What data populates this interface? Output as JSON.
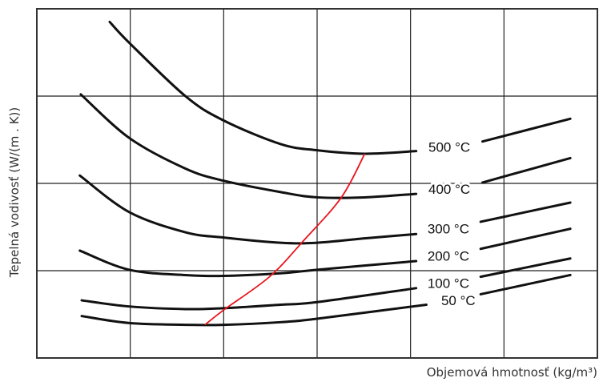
{
  "chart_data": {
    "type": "line",
    "title": "",
    "xlabel": "Objemová hmotnosť (kg/m³)",
    "ylabel": "Tepelná vodivosť (W/(m . K))",
    "xlim": [
      0,
      6
    ],
    "ylim": [
      0,
      4
    ],
    "grid": true,
    "tick_labels_shown": false,
    "series": [
      {
        "name": "500 °C",
        "color": "#111111",
        "segments": [
          [
            [
              0.78,
              3.85
            ],
            [
              0.99,
              3.61
            ],
            [
              1.59,
              3.0
            ],
            [
              2.0,
              2.72
            ],
            [
              2.61,
              2.45
            ],
            [
              3.0,
              2.38
            ],
            [
              3.51,
              2.34
            ],
            [
              4.06,
              2.37
            ]
          ],
          [
            [
              4.77,
              2.48
            ],
            [
              5.71,
              2.74
            ]
          ]
        ]
      },
      {
        "name": "400 °C",
        "color": "#111111",
        "segments": [
          [
            [
              0.47,
              3.02
            ],
            [
              0.99,
              2.52
            ],
            [
              1.59,
              2.17
            ],
            [
              2.0,
              2.03
            ],
            [
              2.61,
              1.9
            ],
            [
              3.0,
              1.84
            ],
            [
              3.51,
              1.84
            ],
            [
              4.06,
              1.88
            ]
          ],
          [
            [
              4.77,
              2.01
            ],
            [
              5.71,
              2.29
            ]
          ]
        ]
      },
      {
        "name": "300 °C",
        "color": "#111111",
        "segments": [
          [
            [
              0.46,
              2.09
            ],
            [
              0.99,
              1.67
            ],
            [
              1.59,
              1.44
            ],
            [
              2.0,
              1.38
            ],
            [
              2.61,
              1.32
            ],
            [
              3.0,
              1.32
            ],
            [
              3.51,
              1.37
            ],
            [
              4.06,
              1.42
            ]
          ],
          [
            [
              4.75,
              1.56
            ],
            [
              5.71,
              1.78
            ]
          ]
        ]
      },
      {
        "name": "200 °C",
        "color": "#111111",
        "segments": [
          [
            [
              0.46,
              1.23
            ],
            [
              0.99,
              1.01
            ],
            [
              1.59,
              0.95
            ],
            [
              2.0,
              0.94
            ],
            [
              2.61,
              0.97
            ],
            [
              3.0,
              1.01
            ],
            [
              4.06,
              1.11
            ]
          ],
          [
            [
              4.75,
              1.25
            ],
            [
              5.71,
              1.48
            ]
          ]
        ]
      },
      {
        "name": "100 °C",
        "color": "#111111",
        "segments": [
          [
            [
              0.48,
              0.66
            ],
            [
              0.99,
              0.59
            ],
            [
              1.59,
              0.56
            ],
            [
              2.0,
              0.57
            ],
            [
              2.61,
              0.61
            ],
            [
              3.0,
              0.64
            ],
            [
              4.06,
              0.8
            ]
          ],
          [
            [
              4.75,
              0.93
            ],
            [
              5.71,
              1.14
            ]
          ]
        ]
      },
      {
        "name": "50 °C",
        "color": "#111111",
        "segments": [
          [
            [
              0.48,
              0.48
            ],
            [
              0.99,
              0.4
            ],
            [
              1.59,
              0.38
            ],
            [
              2.0,
              0.38
            ],
            [
              2.61,
              0.41
            ],
            [
              3.0,
              0.45
            ],
            [
              4.17,
              0.61
            ]
          ],
          [
            [
              4.75,
              0.73
            ],
            [
              5.71,
              0.95
            ]
          ]
        ]
      }
    ],
    "optimum_line": {
      "color": "#e8141c",
      "points": [
        [
          1.8,
          0.38
        ],
        [
          2.0,
          0.55
        ],
        [
          2.49,
          0.93
        ],
        [
          2.86,
          1.35
        ],
        [
          3.26,
          1.84
        ],
        [
          3.51,
          2.34
        ]
      ]
    }
  }
}
